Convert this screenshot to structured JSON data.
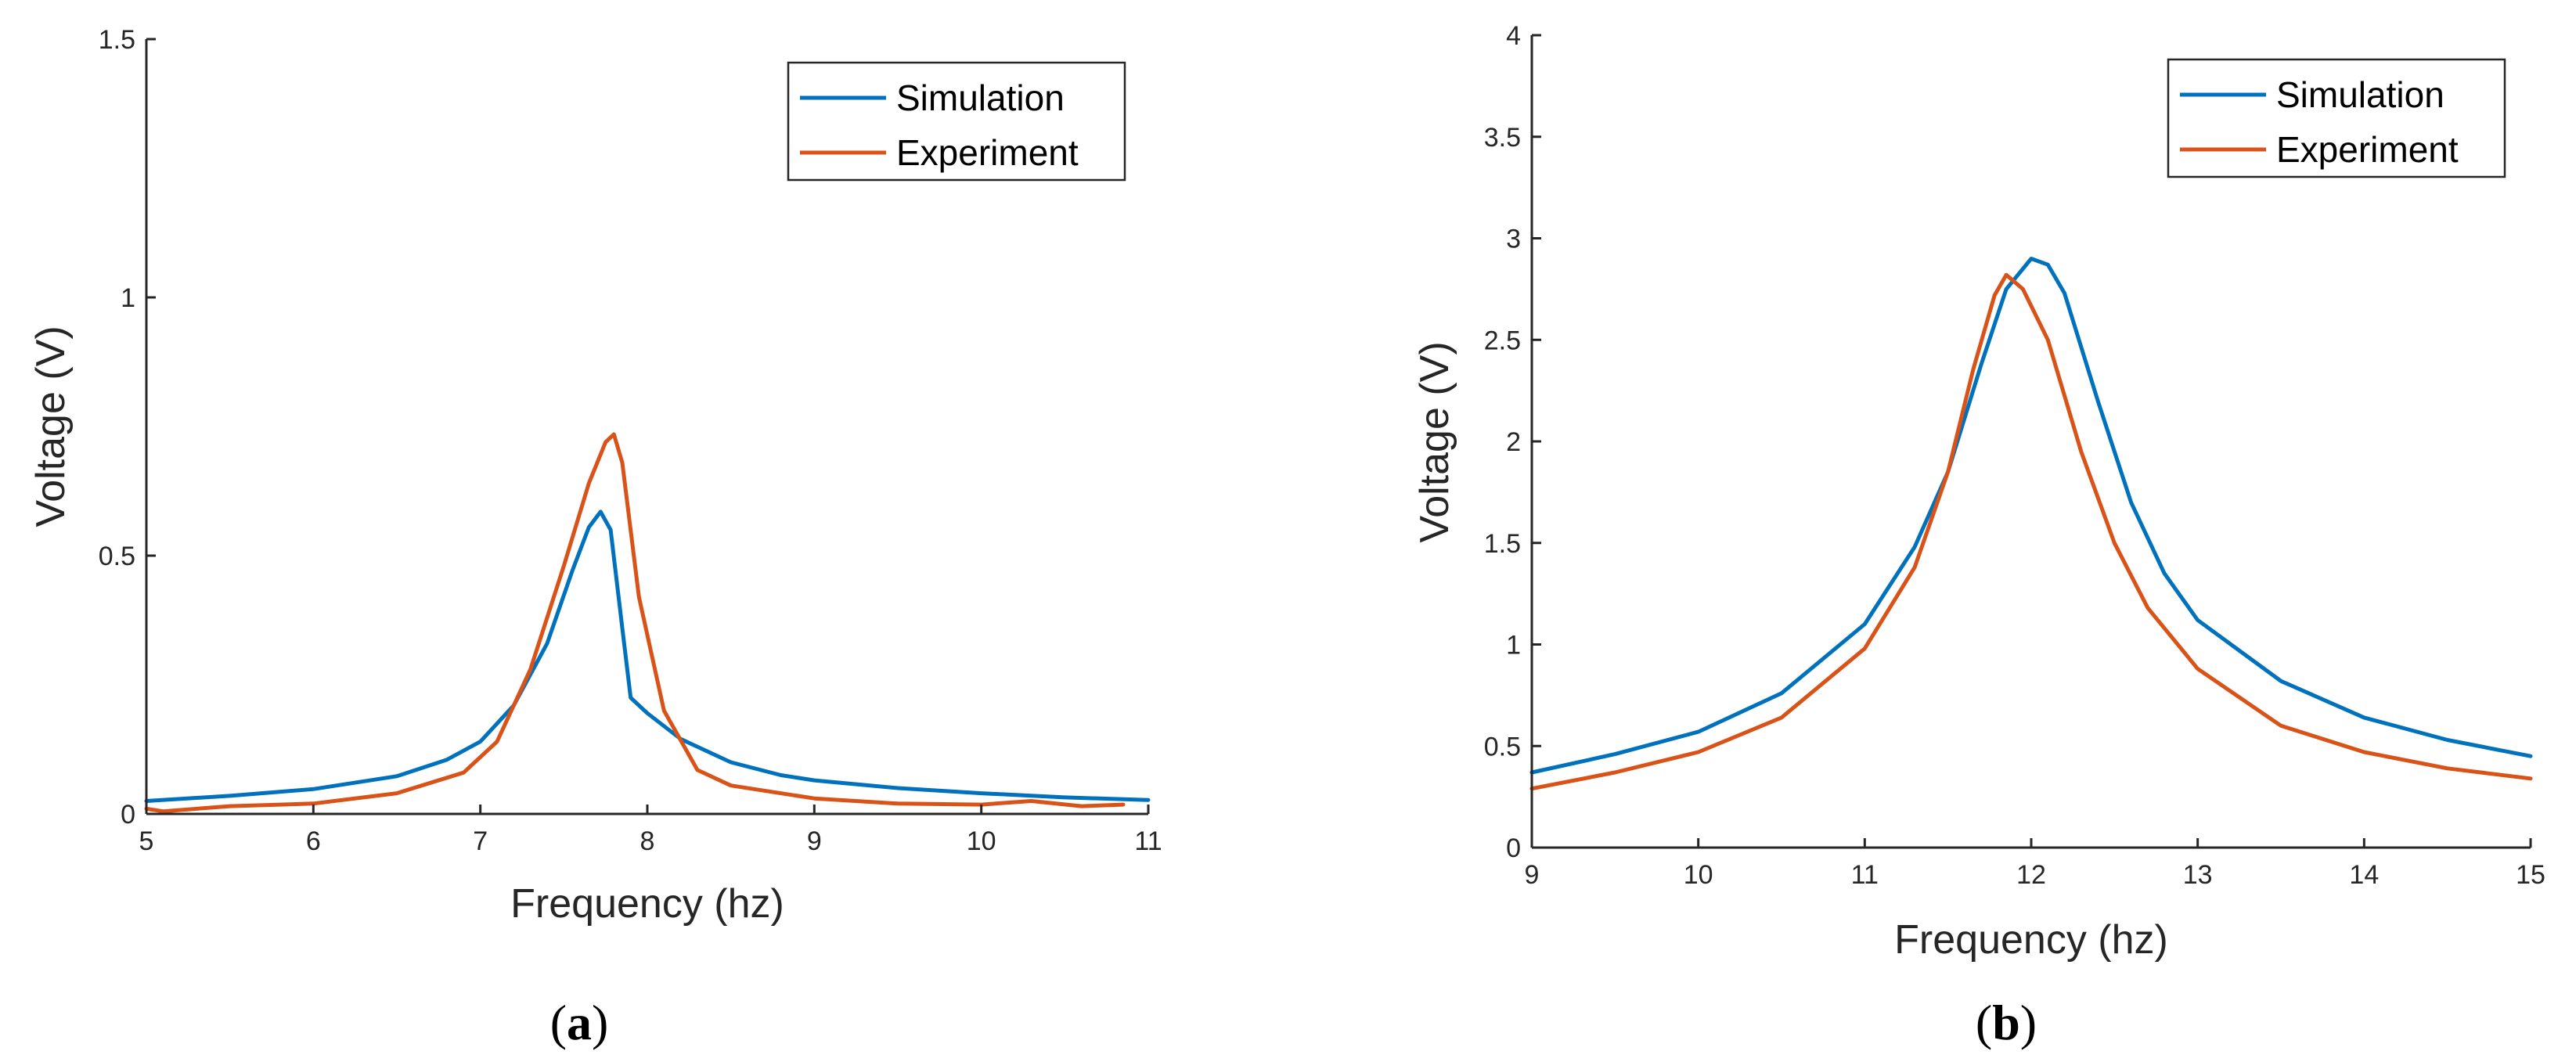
{
  "chart_data": [
    {
      "type": "line",
      "caption": "(a)",
      "caption_letter": "a",
      "title": "",
      "xlabel": "Frequency (hz)",
      "ylabel": "Voltage (V)",
      "xlim": [
        5,
        11
      ],
      "ylim": [
        0,
        1.5
      ],
      "xticks": [
        5,
        6,
        7,
        8,
        9,
        10,
        11
      ],
      "yticks": [
        0,
        0.5,
        1,
        1.5
      ],
      "xtick_labels": [
        "5",
        "6",
        "7",
        "8",
        "9",
        "10",
        "11"
      ],
      "ytick_labels": [
        "0",
        "0.5",
        "1",
        "1.5"
      ],
      "legend_position": "top-right",
      "grid": false,
      "series": [
        {
          "name": "Simulation",
          "color": "#0072BD",
          "x": [
            5.0,
            5.5,
            6.0,
            6.5,
            6.8,
            7.0,
            7.2,
            7.4,
            7.55,
            7.65,
            7.72,
            7.78,
            7.85,
            7.9,
            8.0,
            8.2,
            8.5,
            8.8,
            9.0,
            9.5,
            10.0,
            10.5,
            11.0
          ],
          "y": [
            0.025,
            0.035,
            0.048,
            0.073,
            0.105,
            0.14,
            0.21,
            0.33,
            0.47,
            0.555,
            0.585,
            0.55,
            0.36,
            0.225,
            0.195,
            0.145,
            0.1,
            0.075,
            0.065,
            0.05,
            0.04,
            0.032,
            0.027
          ]
        },
        {
          "name": "Experiment",
          "color": "#D95319",
          "x": [
            5.0,
            5.1,
            5.5,
            6.0,
            6.5,
            6.9,
            7.1,
            7.3,
            7.5,
            7.65,
            7.75,
            7.8,
            7.85,
            7.95,
            8.1,
            8.3,
            8.5,
            9.0,
            9.5,
            10.0,
            10.3,
            10.6,
            10.85
          ],
          "y": [
            0.01,
            0.005,
            0.015,
            0.02,
            0.04,
            0.08,
            0.14,
            0.28,
            0.48,
            0.64,
            0.72,
            0.735,
            0.68,
            0.42,
            0.2,
            0.085,
            0.055,
            0.03,
            0.02,
            0.018,
            0.025,
            0.015,
            0.018
          ]
        }
      ]
    },
    {
      "type": "line",
      "caption": "(b)",
      "caption_letter": "b",
      "title": "",
      "xlabel": "Frequency (hz)",
      "ylabel": "Voltage (V)",
      "xlim": [
        9,
        15
      ],
      "ylim": [
        0,
        4
      ],
      "xticks": [
        9,
        10,
        11,
        12,
        13,
        14,
        15
      ],
      "yticks": [
        0,
        0.5,
        1,
        1.5,
        2,
        2.5,
        3,
        3.5,
        4
      ],
      "xtick_labels": [
        "9",
        "10",
        "11",
        "12",
        "13",
        "14",
        "15"
      ],
      "ytick_labels": [
        "0",
        "0.5",
        "1",
        "1.5",
        "2",
        "2.5",
        "3",
        "3.5",
        "4"
      ],
      "legend_position": "top-right",
      "grid": false,
      "series": [
        {
          "name": "Simulation",
          "color": "#0072BD",
          "x": [
            9.0,
            9.5,
            10.0,
            10.5,
            11.0,
            11.3,
            11.5,
            11.7,
            11.85,
            12.0,
            12.1,
            12.2,
            12.4,
            12.6,
            12.8,
            13.0,
            13.5,
            14.0,
            14.5,
            15.0
          ],
          "y": [
            0.37,
            0.46,
            0.57,
            0.76,
            1.1,
            1.48,
            1.85,
            2.38,
            2.75,
            2.9,
            2.87,
            2.73,
            2.2,
            1.7,
            1.35,
            1.12,
            0.82,
            0.64,
            0.53,
            0.45
          ]
        },
        {
          "name": "Experiment",
          "color": "#D95319",
          "x": [
            9.0,
            9.5,
            10.0,
            10.5,
            11.0,
            11.3,
            11.5,
            11.65,
            11.78,
            11.85,
            11.95,
            12.1,
            12.3,
            12.5,
            12.7,
            13.0,
            13.5,
            14.0,
            14.5,
            15.0
          ],
          "y": [
            0.29,
            0.37,
            0.47,
            0.64,
            0.98,
            1.38,
            1.85,
            2.35,
            2.72,
            2.82,
            2.75,
            2.5,
            1.95,
            1.5,
            1.18,
            0.88,
            0.6,
            0.47,
            0.39,
            0.34
          ]
        }
      ]
    }
  ]
}
